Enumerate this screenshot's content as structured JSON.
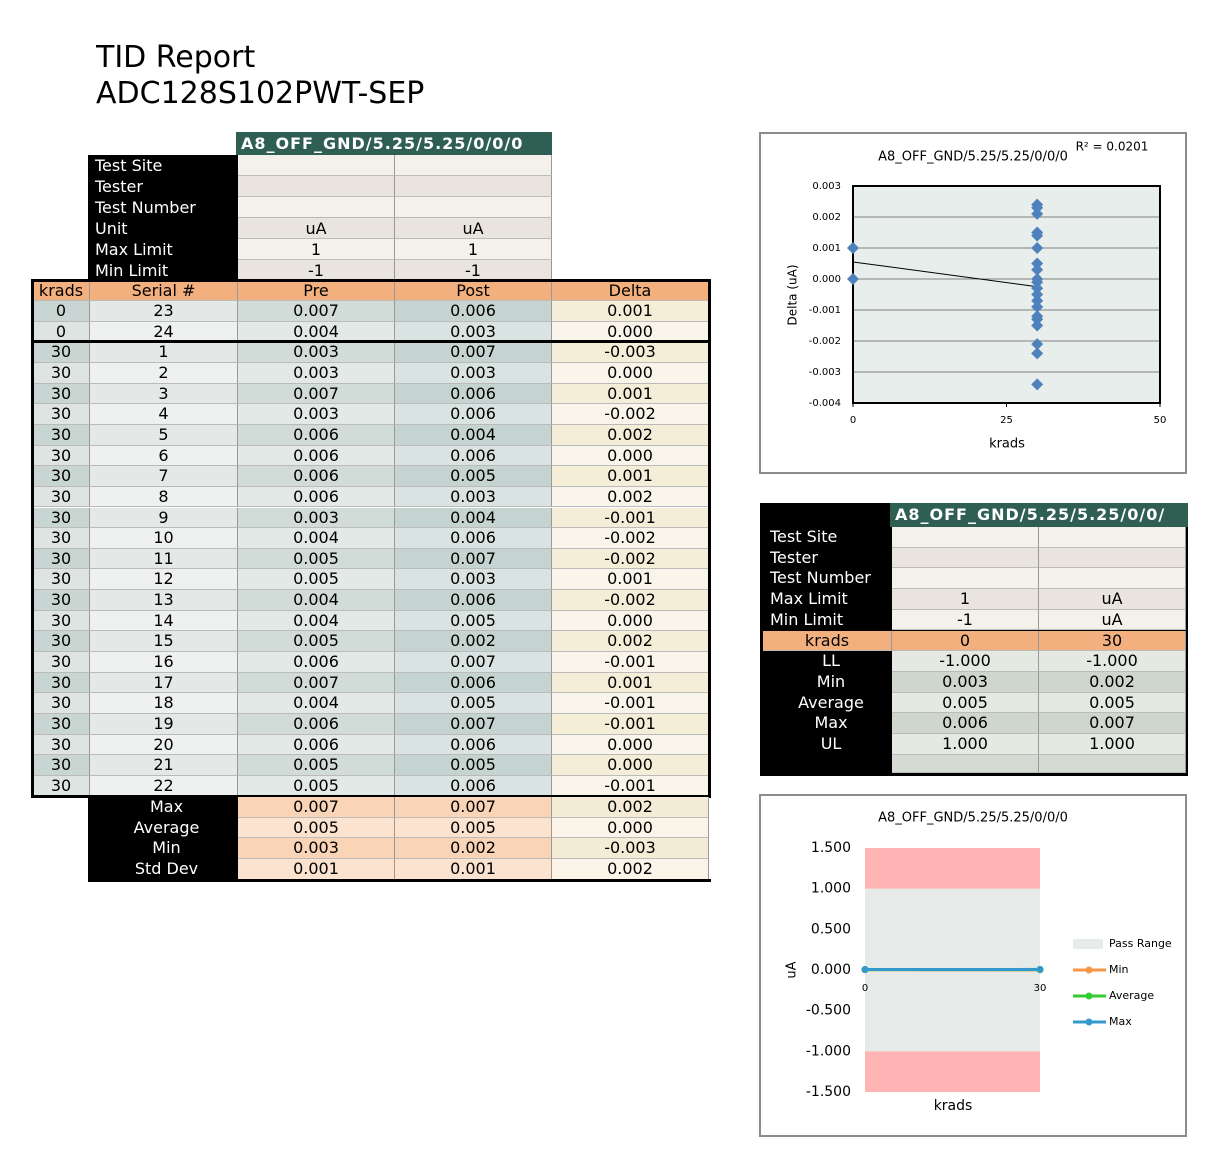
{
  "header": {
    "title": "TID Report",
    "subtitle": "ADC128S102PWT-SEP"
  },
  "main_table": {
    "condition": "A8_OFF_GND/5.25/5.25/0/0/0",
    "meta": [
      [
        "Test Site"
      ],
      [
        "Tester"
      ],
      [
        "Test Number"
      ],
      [
        "Unit",
        "uA",
        "uA"
      ],
      [
        "Max Limit",
        "1",
        "1"
      ],
      [
        "Min Limit",
        "-1",
        "-1"
      ]
    ],
    "columns": [
      "krads",
      "Serial #",
      "Pre",
      "Post",
      "Delta"
    ],
    "rows": [
      [
        "0",
        "23",
        "0.007",
        "0.006",
        "0.001"
      ],
      [
        "0",
        "24",
        "0.004",
        "0.003",
        "0.000"
      ],
      [
        "30",
        "1",
        "0.003",
        "0.007",
        "-0.003"
      ],
      [
        "30",
        "2",
        "0.003",
        "0.003",
        "0.000"
      ],
      [
        "30",
        "3",
        "0.007",
        "0.006",
        "0.001"
      ],
      [
        "30",
        "4",
        "0.003",
        "0.006",
        "-0.002"
      ],
      [
        "30",
        "5",
        "0.006",
        "0.004",
        "0.002"
      ],
      [
        "30",
        "6",
        "0.006",
        "0.006",
        "0.000"
      ],
      [
        "30",
        "7",
        "0.006",
        "0.005",
        "0.001"
      ],
      [
        "30",
        "8",
        "0.006",
        "0.003",
        "0.002"
      ],
      [
        "30",
        "9",
        "0.003",
        "0.004",
        "-0.001"
      ],
      [
        "30",
        "10",
        "0.004",
        "0.006",
        "-0.002"
      ],
      [
        "30",
        "11",
        "0.005",
        "0.007",
        "-0.002"
      ],
      [
        "30",
        "12",
        "0.005",
        "0.003",
        "0.001"
      ],
      [
        "30",
        "13",
        "0.004",
        "0.006",
        "-0.002"
      ],
      [
        "30",
        "14",
        "0.004",
        "0.005",
        "0.000"
      ],
      [
        "30",
        "15",
        "0.005",
        "0.002",
        "0.002"
      ],
      [
        "30",
        "16",
        "0.006",
        "0.007",
        "-0.001"
      ],
      [
        "30",
        "17",
        "0.007",
        "0.006",
        "0.001"
      ],
      [
        "30",
        "18",
        "0.004",
        "0.005",
        "-0.001"
      ],
      [
        "30",
        "19",
        "0.006",
        "0.007",
        "-0.001"
      ],
      [
        "30",
        "20",
        "0.006",
        "0.006",
        "0.000"
      ],
      [
        "30",
        "21",
        "0.005",
        "0.005",
        "0.000"
      ],
      [
        "30",
        "22",
        "0.005",
        "0.006",
        "-0.001"
      ]
    ],
    "summary": [
      [
        "Max",
        "0.007",
        "0.007",
        "0.002"
      ],
      [
        "Average",
        "0.005",
        "0.005",
        "0.000"
      ],
      [
        "Min",
        "0.003",
        "0.002",
        "-0.003"
      ],
      [
        "Std Dev",
        "0.001",
        "0.001",
        "0.002"
      ]
    ]
  },
  "limits_table": {
    "condition": "A8_OFF_GND/5.25/5.25/0/0/",
    "meta": [
      [
        "Test Site"
      ],
      [
        "Tester"
      ],
      [
        "Test Number"
      ],
      [
        "Max Limit",
        "1",
        "uA"
      ],
      [
        "Min Limit",
        "-1",
        "uA"
      ]
    ],
    "columns": [
      "krads",
      "0",
      "30"
    ],
    "rows": [
      [
        "LL",
        "-1.000",
        "-1.000"
      ],
      [
        "Min",
        "0.003",
        "0.002"
      ],
      [
        "Average",
        "0.005",
        "0.005"
      ],
      [
        "Max",
        "0.006",
        "0.007"
      ],
      [
        "UL",
        "1.000",
        "1.000"
      ]
    ]
  },
  "chart_data": [
    {
      "type": "scatter",
      "title": "A8_OFF_GND/5.25/5.25/0/0/0",
      "annotation": "R² = 0.0201",
      "x_label": "krads",
      "y_label": "Delta (uA)",
      "x": [
        0,
        0,
        30,
        30,
        30,
        30,
        30,
        30,
        30,
        30,
        30,
        30,
        30,
        30,
        30,
        30,
        30,
        30,
        30,
        30,
        30,
        30
      ],
      "values": [
        0.001,
        0,
        0.0024,
        0.0023,
        0.0021,
        0.0015,
        0.0014,
        0.001,
        0.0005,
        0.0003,
        0,
        -0.0001,
        -0.0003,
        -0.0005,
        -0.0007,
        -0.0009,
        -0.0012,
        -0.0013,
        -0.0015,
        -0.0021,
        -0.0024,
        -0.0034
      ],
      "color": "#4f81bd",
      "trendline": {
        "x": [
          0,
          30
        ],
        "values": [
          0.00055,
          -0.00025
        ],
        "color": "#000000"
      },
      "xlim": [
        0,
        50
      ],
      "xticks": [
        0,
        25,
        50
      ],
      "ylim": [
        -0.004,
        0.003
      ],
      "yticks": [
        0.003,
        0.002,
        0.001,
        {
          "value": 0,
          "label": "0.000"
        },
        -0.001,
        -0.002,
        -0.003,
        -0.004
      ],
      "grid": true
    },
    {
      "type": "line",
      "title": "A8_OFF_GND/5.25/5.25/0/0/0",
      "x_label": "krads",
      "y_label": "uA",
      "categories": [
        "0",
        "30"
      ],
      "ylim": [
        -1.5,
        1.5
      ],
      "yticks": [
        {
          "value": 1.5,
          "label": "1.500"
        },
        {
          "value": 1,
          "label": "1.000"
        },
        {
          "value": 0.5,
          "label": "0.500"
        },
        {
          "value": 0,
          "label": "0.000"
        },
        {
          "value": -0.5,
          "label": "-0.500"
        },
        {
          "value": -1,
          "label": "-1.000"
        },
        {
          "value": -1.5,
          "label": "-1.500"
        }
      ],
      "pass_range": {
        "name": "Pass Range",
        "color": "#e6ebe9",
        "lower": [
          -1,
          -1
        ],
        "upper": [
          1,
          1
        ]
      },
      "fail_color": "#ffb3b3",
      "series": [
        {
          "name": "Min",
          "color": "#f79646",
          "values": [
            0.003,
            0.002
          ]
        },
        {
          "name": "Average",
          "color": "#33cc33",
          "values": [
            0.005,
            0.005
          ]
        },
        {
          "name": "Max",
          "color": "#3399cc",
          "values": [
            0.006,
            0.007
          ]
        }
      ]
    }
  ]
}
